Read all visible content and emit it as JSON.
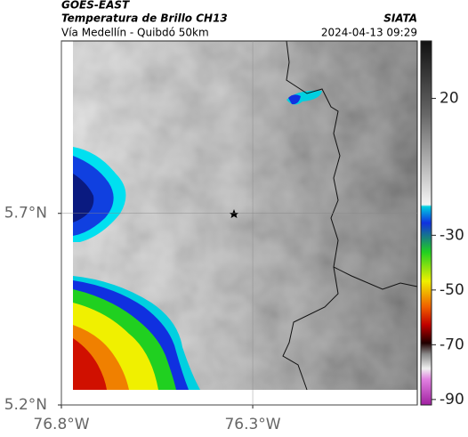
{
  "header": {
    "satellite": "GOES-EAST",
    "title": "Temperatura de Brillo CH13",
    "subtitle": "Vía Medellín - Quibdó 50km",
    "source": "SIATA",
    "timestamp": "2024-04-13 09:29"
  },
  "map": {
    "xlim": [
      -76.8,
      -75.87
    ],
    "ylim": [
      5.2,
      6.15
    ],
    "xticks": [
      {
        "value": -76.8,
        "label": "76.8°W"
      },
      {
        "value": -76.3,
        "label": "76.3°W"
      }
    ],
    "yticks": [
      {
        "value": 5.2,
        "label": "5.2°N"
      },
      {
        "value": 5.7,
        "label": "5.7°N"
      }
    ],
    "grid": true
  },
  "colorbar": {
    "lim": [
      -92,
      41
    ],
    "ticks": [
      20,
      -30,
      -50,
      -70,
      -90
    ]
  }
}
